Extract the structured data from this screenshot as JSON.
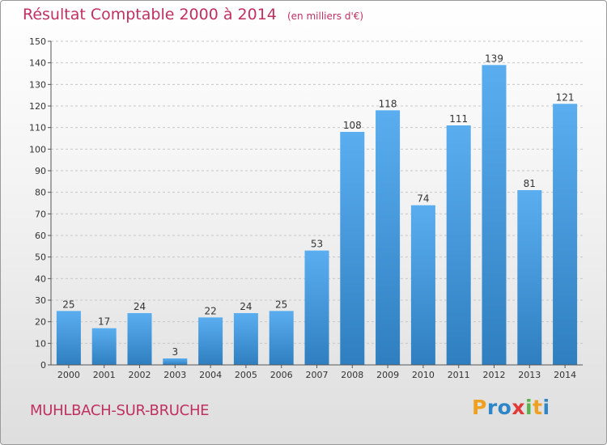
{
  "title": "Résultat Comptable 2000 à 2014",
  "subtitle": "(en milliers d'€)",
  "commune": "MUHLBACH-SUR-BRUCHE",
  "logo": {
    "letters": [
      "P",
      "r",
      "o",
      "x",
      "i",
      "t",
      "i"
    ],
    "colors": [
      "#f0a020",
      "#2e86c8",
      "#2e86c8",
      "#e03a3a",
      "#56b64c",
      "#f0a020",
      "#2e86c8"
    ]
  },
  "colors": {
    "bar": "#4a9ee0",
    "bar_top": "#5aaef0",
    "bar_bottom": "#2f7fc0",
    "title": "#c03060"
  },
  "chart_data": {
    "type": "bar",
    "categories": [
      "2000",
      "2001",
      "2002",
      "2003",
      "2004",
      "2005",
      "2006",
      "2007",
      "2008",
      "2009",
      "2010",
      "2011",
      "2012",
      "2013",
      "2014"
    ],
    "values": [
      25,
      17,
      24,
      3,
      22,
      24,
      25,
      53,
      108,
      118,
      74,
      111,
      139,
      81,
      121
    ],
    "title": "Résultat Comptable 2000 à 2014",
    "subtitle": "(en milliers d'€)",
    "xlabel": "",
    "ylabel": "",
    "ylim": [
      0,
      150
    ],
    "yticks": [
      0,
      10,
      20,
      30,
      40,
      50,
      60,
      70,
      80,
      90,
      100,
      110,
      120,
      130,
      140,
      150
    ],
    "grid": true,
    "data_labels": true
  }
}
